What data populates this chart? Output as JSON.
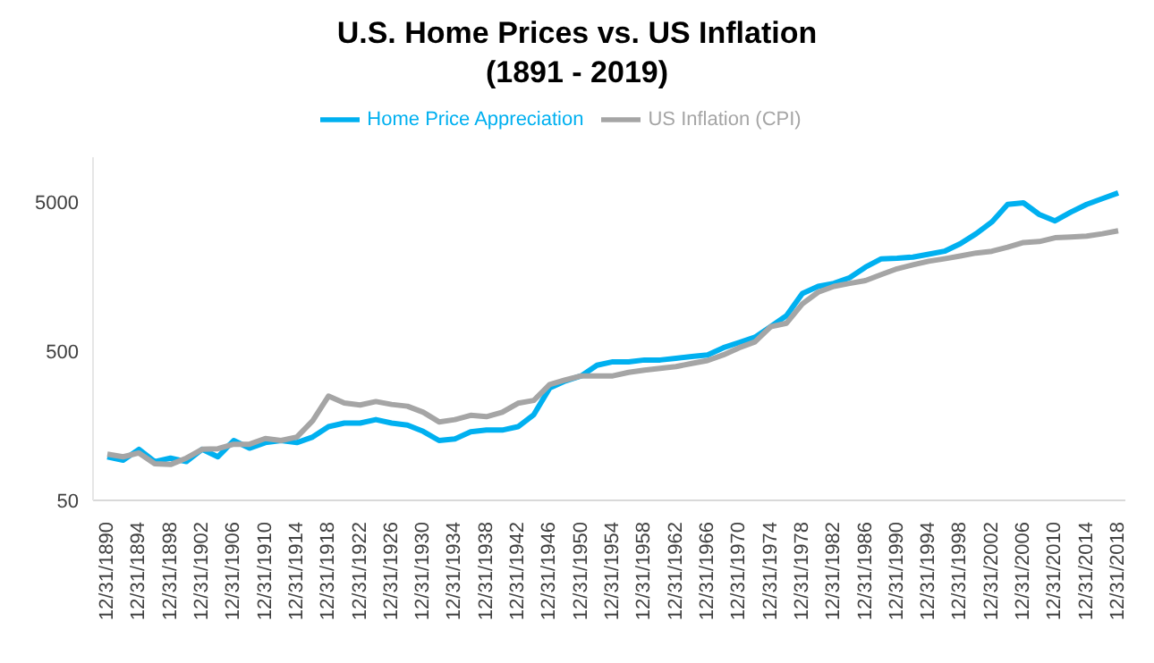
{
  "chart_data": {
    "type": "line",
    "title": "U.S. Home Prices vs. US Inflation (1891 - 2019)",
    "categories": [
      "12/31/1890",
      null,
      "12/31/1894",
      null,
      "12/31/1898",
      null,
      "12/31/1902",
      null,
      "12/31/1906",
      null,
      "12/31/1910",
      null,
      "12/31/1914",
      null,
      "12/31/1918",
      null,
      "12/31/1922",
      null,
      "12/31/1926",
      null,
      "12/31/1930",
      null,
      "12/31/1934",
      null,
      "12/31/1938",
      null,
      "12/31/1942",
      null,
      "12/31/1946",
      null,
      "12/31/1950",
      null,
      "12/31/1954",
      null,
      "12/31/1958",
      null,
      "12/31/1962",
      null,
      "12/31/1966",
      null,
      "12/31/1970",
      null,
      "12/31/1974",
      null,
      "12/31/1978",
      null,
      "12/31/1982",
      null,
      "12/31/1986",
      null,
      "12/31/1990",
      null,
      "12/31/1994",
      null,
      "12/31/1998",
      null,
      "12/31/2002",
      null,
      "12/31/2006",
      null,
      "12/31/2010",
      null,
      "12/31/2014",
      null,
      "12/31/2018"
    ],
    "series": [
      {
        "name": "Home Price Appreciation",
        "color": "#00b0f0",
        "values": [
          98,
          93,
          110,
          91,
          96,
          91,
          110,
          98,
          126,
          112,
          122,
          126,
          122,
          133,
          156,
          165,
          165,
          174,
          165,
          160,
          145,
          126,
          129,
          144,
          148,
          148,
          156,
          188,
          283,
          316,
          342,
          403,
          425,
          425,
          437,
          437,
          449,
          461,
          473,
          528,
          573,
          621,
          731,
          867,
          1221,
          1362,
          1427,
          1559,
          1835,
          2085,
          2100,
          2142,
          2237,
          2343,
          2631,
          3069,
          3681,
          4830,
          4950,
          4135,
          3742,
          4285,
          4830,
          5280,
          5770
        ]
      },
      {
        "name": "US Inflation (CPI)",
        "color": "#a5a5a5",
        "values": [
          102,
          98,
          104,
          88,
          87,
          96,
          110,
          111,
          119,
          119,
          130,
          126,
          133,
          171,
          250,
          225,
          218,
          230,
          220,
          214,
          195,
          168,
          174,
          186,
          182,
          195,
          224,
          234,
          299,
          321,
          342,
          342,
          342,
          361,
          374,
          384,
          395,
          414,
          433,
          473,
          528,
          578,
          731,
          771,
          1040,
          1245,
          1362,
          1427,
          1489,
          1634,
          1787,
          1900,
          2008,
          2085,
          2177,
          2280,
          2343,
          2494,
          2681,
          2720,
          2884,
          2920,
          2960,
          3069,
          3215
        ]
      }
    ],
    "log": true,
    "ylim": [
      50,
      10000
    ],
    "yticks": [
      50,
      500,
      5000
    ],
    "grid": false,
    "legend": "top",
    "marker": "none",
    "line_style": "solid"
  }
}
